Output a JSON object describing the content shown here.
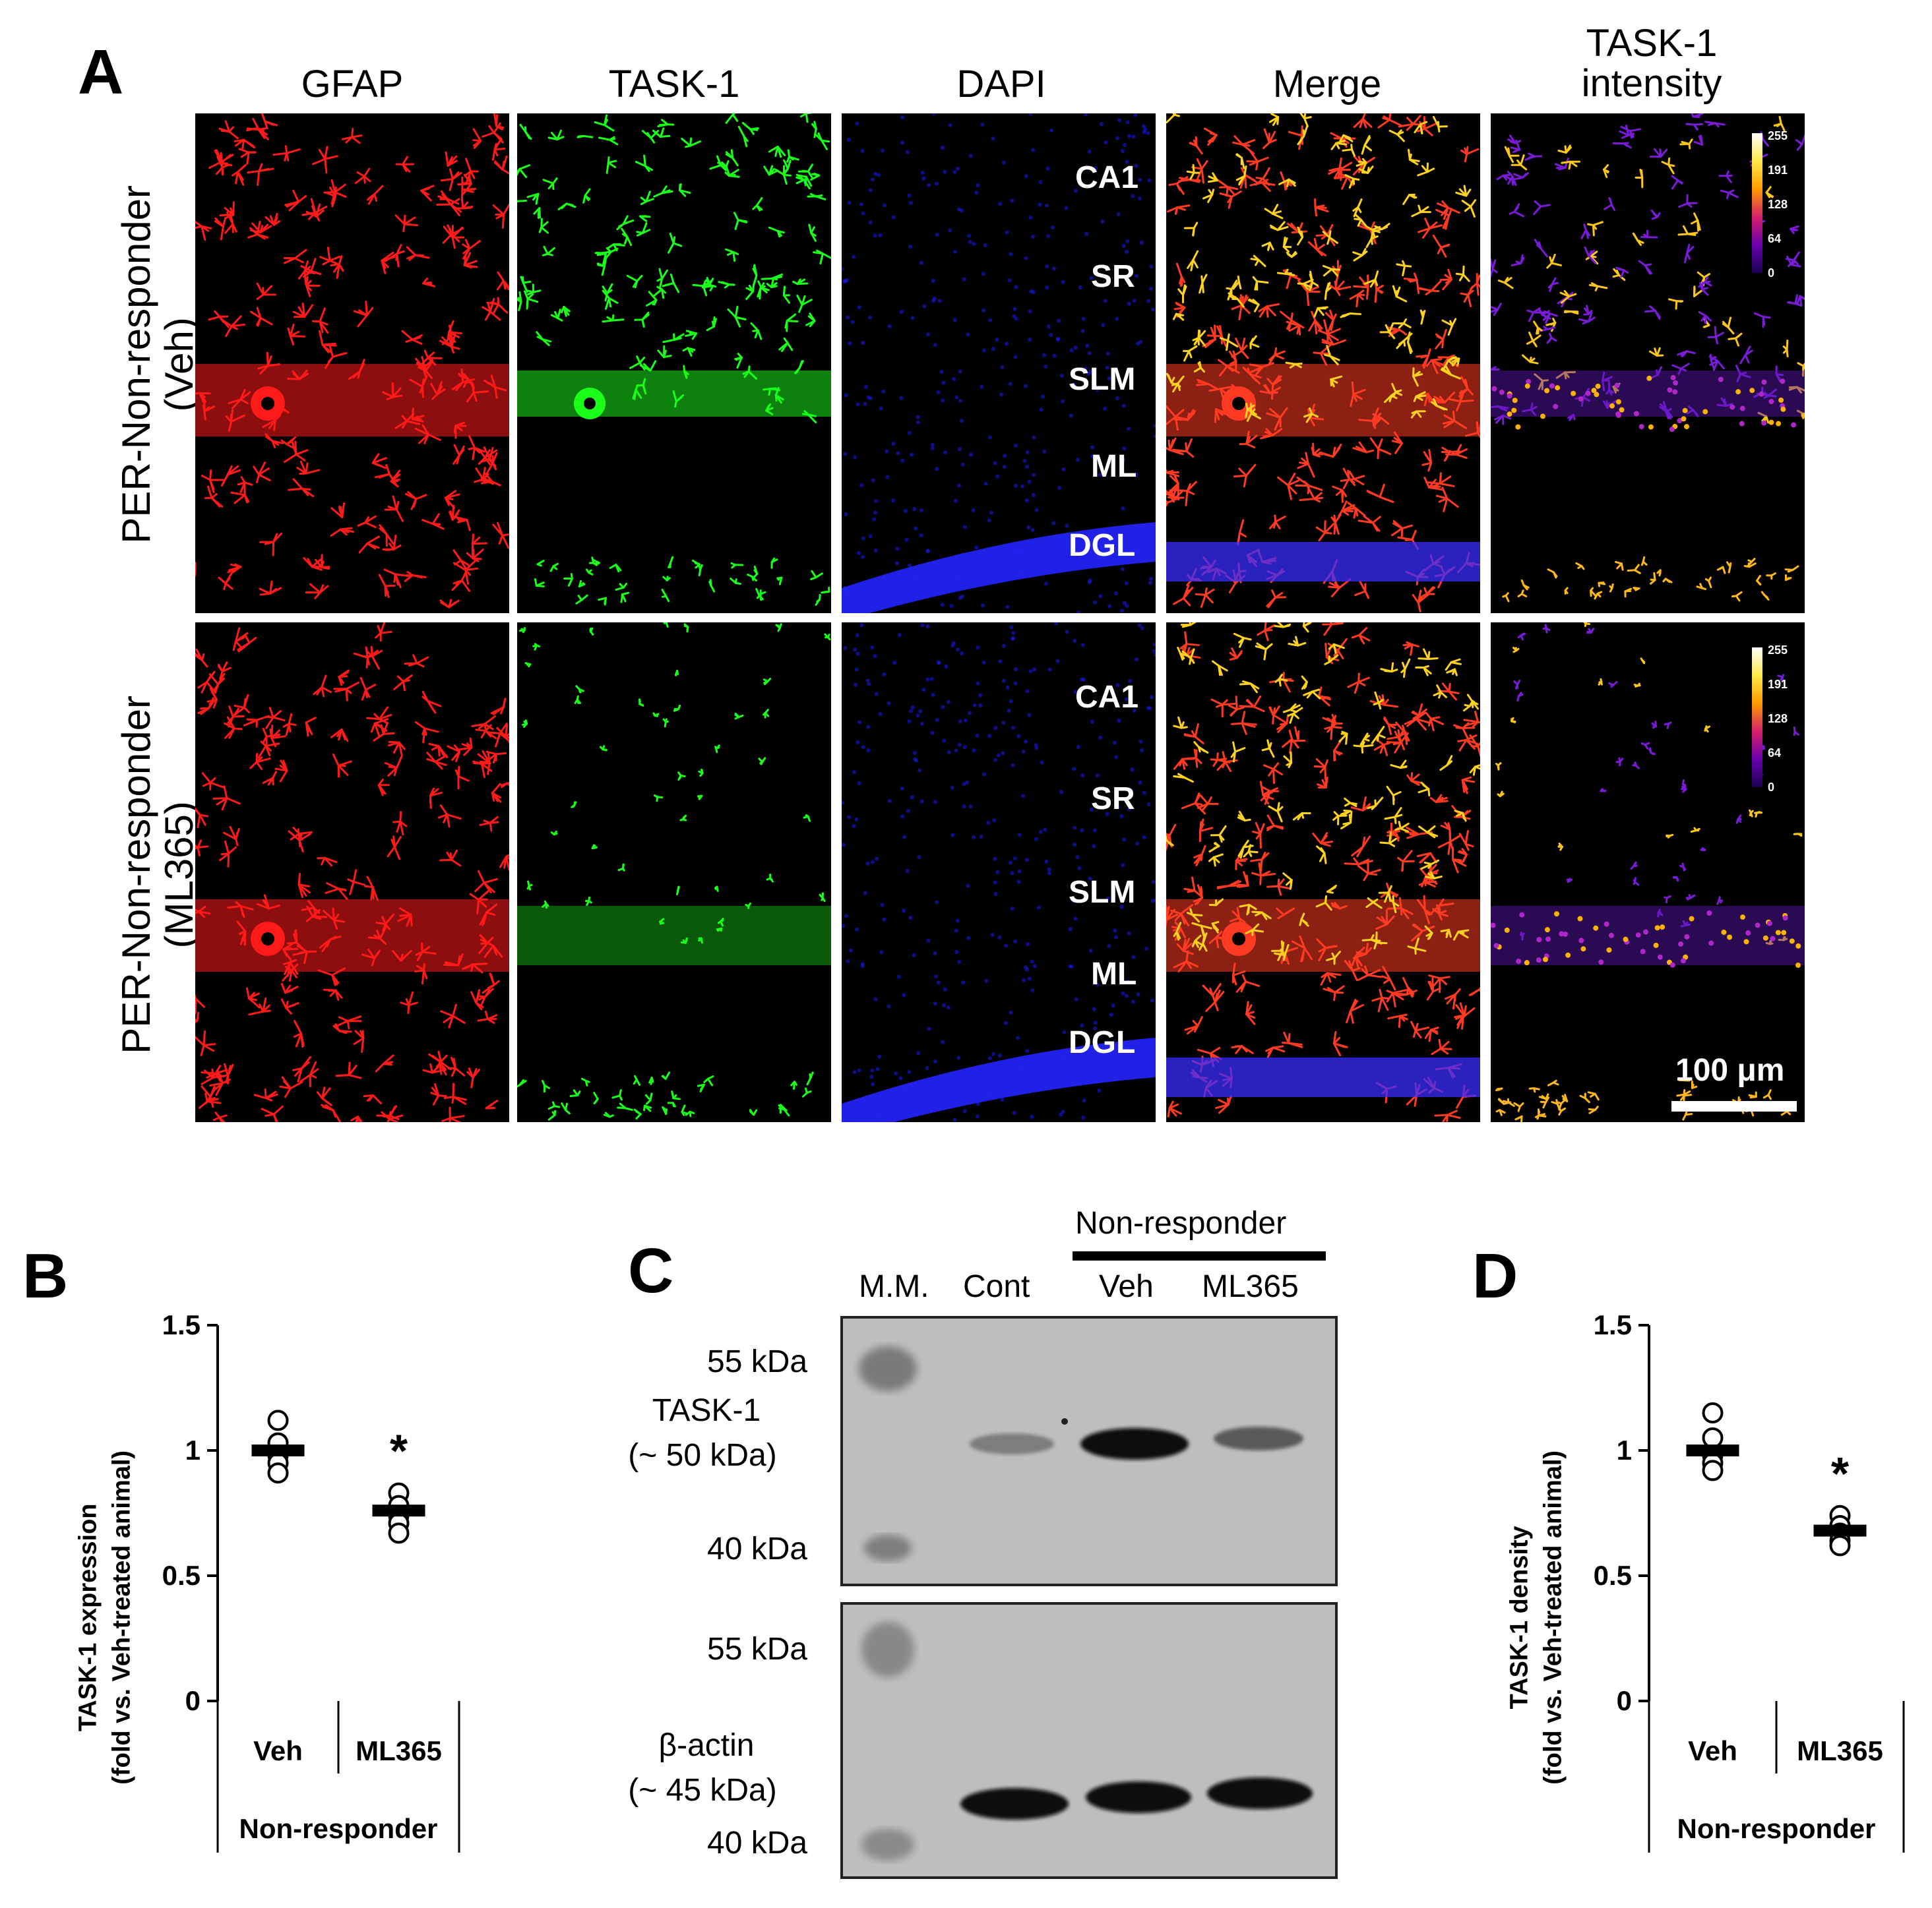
{
  "panel_a": {
    "letter": "A",
    "columns": [
      "GFAP",
      "TASK-1",
      "DAPI",
      "Merge",
      "TASK-1\nintensity"
    ],
    "rows": [
      {
        "label_line1": "PER-Non-responder",
        "label_line2": "(Veh)"
      },
      {
        "label_line1": "PER-Non-responder",
        "label_line2": "(ML365)"
      }
    ],
    "regions_row1": [
      "CA1",
      "SR",
      "SLM",
      "ML",
      "DGL"
    ],
    "regions_row2": [
      "CA1",
      "SR",
      "SLM",
      "ML",
      "DGL"
    ],
    "colorbar_ticks": [
      "255",
      "191",
      "128",
      "64",
      "0"
    ],
    "scale_bar_label": "100 μm",
    "colors": {
      "gfap": "#ff1a1a",
      "task1": "#1aff1a",
      "dapi": "#1a1aff"
    }
  },
  "panel_b": {
    "letter": "B",
    "ylabel_line1": "TASK-1 expression",
    "ylabel_line2": "(fold vs. Veh-treated animal)",
    "group_label": "Non-responder",
    "significance": "*",
    "chart_data": {
      "type": "scatter",
      "categories": [
        "Veh",
        "ML365"
      ],
      "ylim": [
        0,
        1.5
      ],
      "yticks": [
        "1.5",
        "1",
        "0.5",
        "0"
      ],
      "means": [
        1.0,
        0.76
      ],
      "points": [
        [
          1.12,
          1.03,
          0.98,
          0.95,
          0.91
        ],
        [
          0.83,
          0.78,
          0.74,
          0.71,
          0.67
        ]
      ]
    }
  },
  "panel_c": {
    "letter": "C",
    "lanes": [
      "M.M.",
      "Cont",
      "Veh",
      "ML365"
    ],
    "group_label": "Non-responder",
    "top_markers": [
      "55 kDa",
      "40 kDa"
    ],
    "top_protein_line1": "TASK-1",
    "top_protein_line2": "(~ 50 kDa)",
    "bottom_markers": [
      "55 kDa",
      "40 kDa"
    ],
    "bottom_protein_line1": "β-actin",
    "bottom_protein_line2": "(~ 45 kDa)"
  },
  "panel_d": {
    "letter": "D",
    "ylabel_line1": "TASK-1 density",
    "ylabel_line2": "(fold vs. Veh-treated animal)",
    "group_label": "Non-responder",
    "significance": "*",
    "chart_data": {
      "type": "scatter",
      "categories": [
        "Veh",
        "ML365"
      ],
      "ylim": [
        0,
        1.5
      ],
      "yticks": [
        "1.5",
        "1",
        "0.5",
        "0"
      ],
      "means": [
        1.0,
        0.68
      ],
      "points": [
        [
          1.15,
          1.05,
          0.98,
          0.95,
          0.92
        ],
        [
          0.74,
          0.7,
          0.67,
          0.64,
          0.62
        ]
      ]
    }
  }
}
